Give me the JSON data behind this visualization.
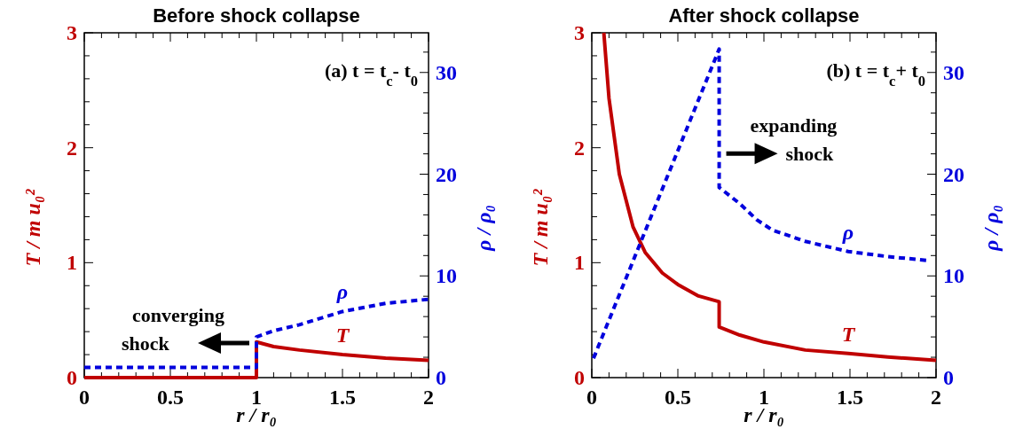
{
  "chart_data": [
    {
      "type": "line",
      "title": "Before shock collapse",
      "xlabel": "r / r₀",
      "ylabel": "T / m u₀²",
      "y2label": "ρ / ρ₀",
      "annotations": [
        "(a) t = t$_{c}$- t$_{0}$",
        {
          "text": "converging shock",
          "x": 1,
          "y": 0.3
        }
      ],
      "xlim": [
        0,
        2
      ],
      "ylim": [
        0,
        3
      ],
      "y2lim": [
        0,
        33.9
      ],
      "xticks": [
        0,
        {
          "value": 0.1,
          "label": null
        },
        {
          "value": 0.2,
          "label": null
        },
        {
          "value": 0.3,
          "label": null
        },
        {
          "value": 0.4,
          "label": null
        },
        0.5,
        {
          "value": 0.6,
          "label": null
        },
        {
          "value": 0.7,
          "label": null
        },
        {
          "value": 0.8,
          "label": null
        },
        {
          "value": 0.9,
          "label": null
        },
        1,
        {
          "value": 1.1,
          "label": null
        },
        {
          "value": 1.2,
          "label": null
        },
        {
          "value": 1.3,
          "label": null
        },
        {
          "value": 1.4,
          "label": null
        },
        1.5,
        {
          "value": 1.6,
          "label": null
        },
        {
          "value": 1.7,
          "label": null
        },
        {
          "value": 1.8,
          "label": null
        },
        {
          "value": 1.9,
          "label": null
        },
        2
      ],
      "yticks": [
        0,
        {
          "value": 0.2,
          "label": null
        },
        {
          "value": 0.4,
          "label": null
        },
        {
          "value": 0.6,
          "label": null
        },
        {
          "value": 0.8,
          "label": null
        },
        1,
        {
          "value": 1.2,
          "label": null
        },
        {
          "value": 1.4,
          "label": null
        },
        {
          "value": 1.6,
          "label": null
        },
        {
          "value": 1.8,
          "label": null
        },
        2,
        {
          "value": 2.2,
          "label": null
        },
        {
          "value": 2.4,
          "label": null
        },
        {
          "value": 2.6,
          "label": null
        },
        {
          "value": 2.8,
          "label": null
        },
        3
      ],
      "y2ticks": [
        0,
        {
          "value": 2,
          "label": null
        },
        {
          "value": 4,
          "label": null
        },
        {
          "value": 6,
          "label": null
        },
        {
          "value": 8,
          "label": null
        },
        10,
        {
          "value": 12,
          "label": null
        },
        {
          "value": 14,
          "label": null
        },
        {
          "value": 16,
          "label": null
        },
        {
          "value": 18,
          "label": null
        },
        20,
        {
          "value": 22,
          "label": null
        },
        {
          "value": 24,
          "label": null
        },
        {
          "value": 26,
          "label": null
        },
        {
          "value": 28,
          "label": null
        },
        30,
        {
          "value": 32,
          "label": null
        }
      ],
      "grid": false,
      "legend": false,
      "marker": "none",
      "series": [
        {
          "name": "T",
          "color": "#c00000",
          "line_style": "solid",
          "x": [
            0,
            1,
            1,
            1.1,
            1.25,
            1.5,
            1.75,
            2
          ],
          "values": [
            0,
            0,
            0.31,
            0.27,
            0.24,
            0.2,
            0.17,
            0.15
          ]
        },
        {
          "name": "ρ",
          "color": "#0000dd",
          "line_style": "dashed",
          "axis": "y2",
          "x": [
            0,
            1,
            1,
            1.1,
            1.25,
            1.5,
            1.75,
            2
          ],
          "values": [
            1,
            1,
            4,
            4.6,
            5.2,
            6.5,
            7.3,
            7.7
          ]
        }
      ]
    },
    {
      "type": "line",
      "title": "After shock collapse",
      "xlabel": "r / r₀",
      "ylabel": "T / m u₀²",
      "y2label": "ρ / ρ₀",
      "annotations": [
        "(b) t = t$_{c}$+ t$_{0}$",
        {
          "text": "expanding shock",
          "x": 0.74,
          "y": 1.95
        }
      ],
      "xlim": [
        0,
        2
      ],
      "ylim": [
        0,
        3
      ],
      "y2lim": [
        0,
        33.9
      ],
      "xticks": [
        0,
        {
          "value": 0.1,
          "label": null
        },
        {
          "value": 0.2,
          "label": null
        },
        {
          "value": 0.3,
          "label": null
        },
        {
          "value": 0.4,
          "label": null
        },
        0.5,
        {
          "value": 0.6,
          "label": null
        },
        {
          "value": 0.7,
          "label": null
        },
        {
          "value": 0.8,
          "label": null
        },
        {
          "value": 0.9,
          "label": null
        },
        1,
        {
          "value": 1.1,
          "label": null
        },
        {
          "value": 1.2,
          "label": null
        },
        {
          "value": 1.3,
          "label": null
        },
        {
          "value": 1.4,
          "label": null
        },
        1.5,
        {
          "value": 1.6,
          "label": null
        },
        {
          "value": 1.7,
          "label": null
        },
        {
          "value": 1.8,
          "label": null
        },
        {
          "value": 1.9,
          "label": null
        },
        2
      ],
      "yticks": [
        0,
        {
          "value": 0.2,
          "label": null
        },
        {
          "value": 0.4,
          "label": null
        },
        {
          "value": 0.6,
          "label": null
        },
        {
          "value": 0.8,
          "label": null
        },
        1,
        {
          "value": 1.2,
          "label": null
        },
        {
          "value": 1.4,
          "label": null
        },
        {
          "value": 1.6,
          "label": null
        },
        {
          "value": 1.8,
          "label": null
        },
        2,
        {
          "value": 2.2,
          "label": null
        },
        {
          "value": 2.4,
          "label": null
        },
        {
          "value": 2.6,
          "label": null
        },
        {
          "value": 2.8,
          "label": null
        },
        3
      ],
      "y2ticks": [
        0,
        {
          "value": 2,
          "label": null
        },
        {
          "value": 4,
          "label": null
        },
        {
          "value": 6,
          "label": null
        },
        {
          "value": 8,
          "label": null
        },
        10,
        {
          "value": 12,
          "label": null
        },
        {
          "value": 14,
          "label": null
        },
        {
          "value": 16,
          "label": null
        },
        {
          "value": 18,
          "label": null
        },
        20,
        {
          "value": 22,
          "label": null
        },
        {
          "value": 24,
          "label": null
        },
        {
          "value": 26,
          "label": null
        },
        {
          "value": 28,
          "label": null
        },
        30,
        {
          "value": 32,
          "label": null
        }
      ],
      "grid": false,
      "legend": false,
      "marker": "none",
      "series": [
        {
          "name": "T",
          "color": "#c00000",
          "line_style": "solid",
          "x": [
            0.07,
            0.1,
            0.16,
            0.24,
            0.31,
            0.41,
            0.5,
            0.62,
            0.74,
            0.74,
            0.86,
            1,
            1.24,
            1.49,
            1.72,
            2
          ],
          "values": [
            3,
            2.43,
            1.77,
            1.31,
            1.09,
            0.91,
            0.81,
            0.71,
            0.66,
            0.44,
            0.37,
            0.31,
            0.24,
            0.21,
            0.18,
            0.15
          ]
        },
        {
          "name": "ρ",
          "color": "#0000dd",
          "line_style": "dashed",
          "axis": "y2",
          "x": [
            0.01,
            0.74,
            0.74,
            0.86,
            0.96,
            1.05,
            1.24,
            1.49,
            1.72,
            1.96
          ],
          "values": [
            1.9,
            32.3,
            18.7,
            17.1,
            15.5,
            14.5,
            13.4,
            12.4,
            11.9,
            11.5
          ]
        }
      ]
    }
  ]
}
